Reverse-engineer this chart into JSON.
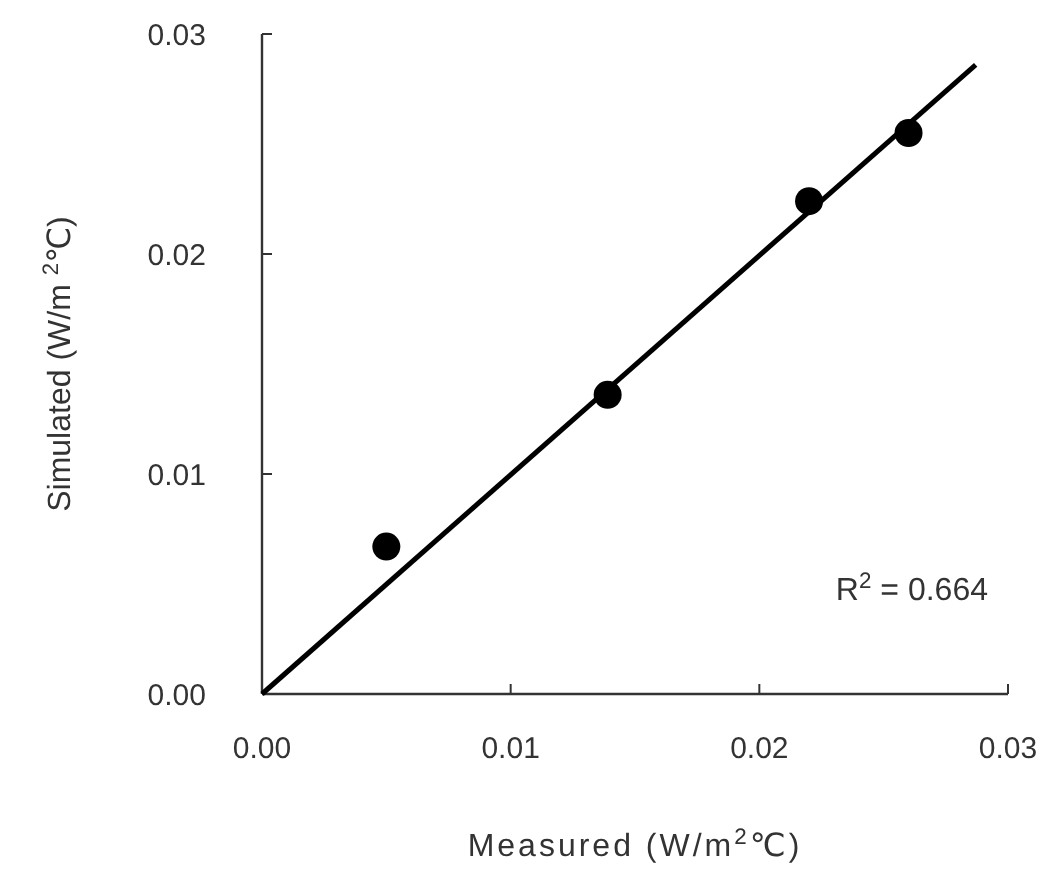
{
  "chart_data": {
    "type": "scatter",
    "xlabel": "Measured (W/m$^{2}$℃)",
    "ylabel": "Simulated (W/m $^{2}$℃)",
    "annotations": [
      "R$^{2}$ = 0.664"
    ],
    "series": [
      {
        "color": "#000000",
        "marker": "circle",
        "x": [
          0.005,
          0.0139,
          0.022,
          0.026
        ],
        "values": [
          0.0067,
          0.0136,
          0.0224,
          0.0255
        ]
      },
      {
        "type": "line",
        "color": "#000000",
        "line_style": "solid",
        "x": [
          0,
          0.0287
        ],
        "values": [
          0,
          0.0286
        ]
      }
    ],
    "xlim": [
      0,
      0.03
    ],
    "ylim": [
      0,
      0.03
    ],
    "xticks": [
      {
        "value": 0,
        "label": "0.00"
      },
      0.01,
      0.02,
      0.03
    ],
    "yticks": [
      {
        "value": 0,
        "label": "0.00"
      },
      0.01,
      0.02,
      0.03
    ]
  }
}
